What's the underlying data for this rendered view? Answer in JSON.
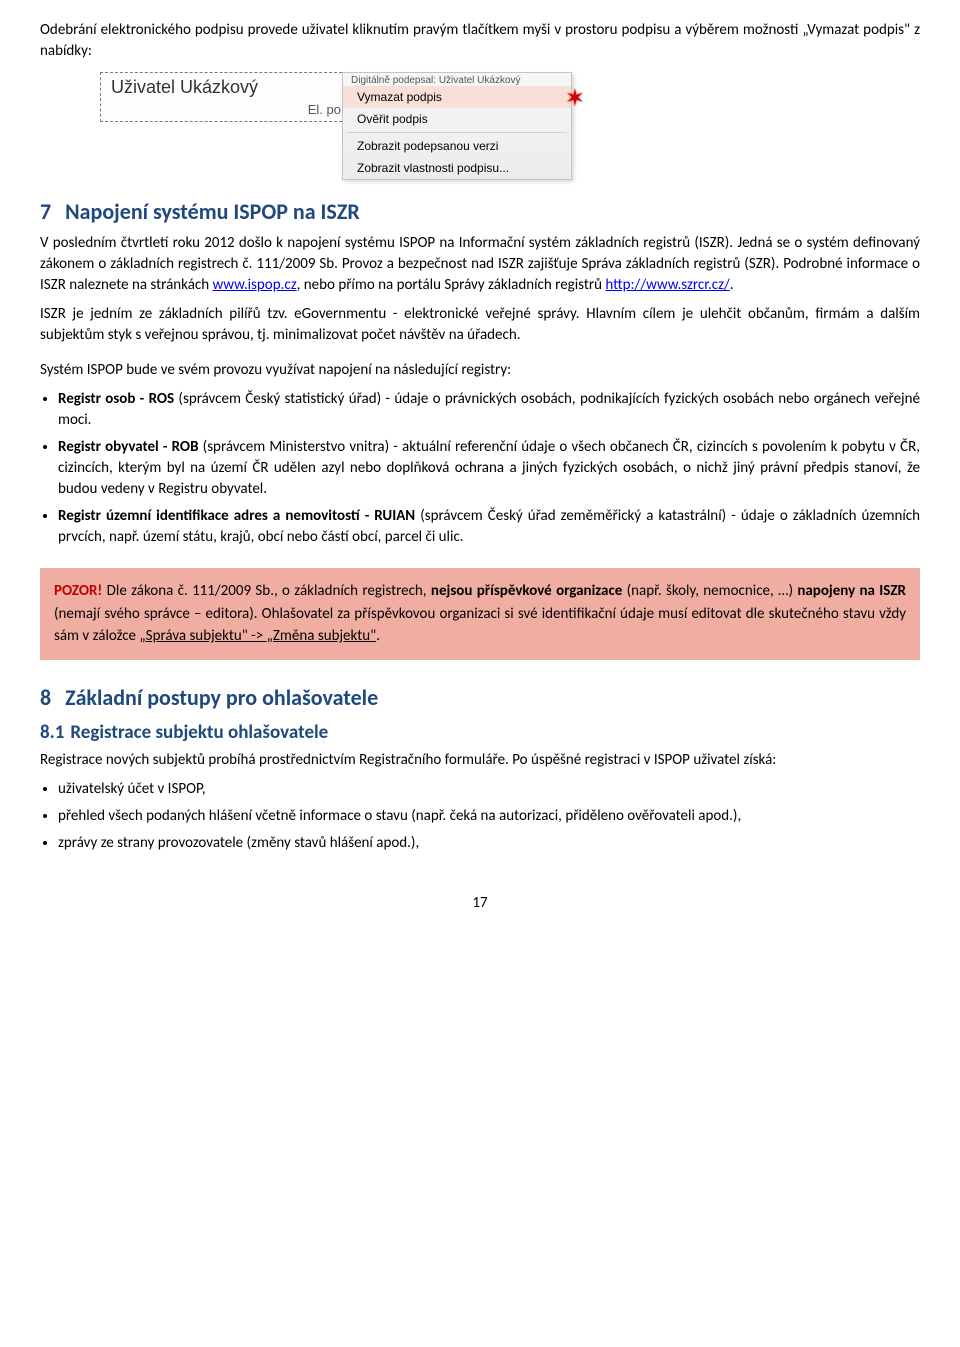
{
  "intro_text": "Odebrání elektronického podpisu provede uživatel kliknutím pravým tlačítkem myši v prostoru podpisu a výběrem možnosti „Vymazat podpis\" z nabídky:",
  "context_menu": {
    "signature_header": "Digitálně podepsal: Uživatel Ukázkový",
    "sig_name": "Uživatel Ukázkový",
    "sig_sub": "El. po",
    "items": [
      "Vymazat podpis",
      "Ověřit podpis",
      "Zobrazit podepsanou verzi",
      "Zobrazit vlastnosti podpisu..."
    ]
  },
  "section7": {
    "num": "7",
    "title": "Napojení systému ISPOP na ISZR",
    "p1a": "V posledním čtvrtletí roku 2012 došlo k napojení systému ISPOP na Informační systém základních registrů (ISZR). Jedná se o systém definovaný zákonem o základních registrech č. 111/2009 Sb. Provoz a bezpečnost nad ISZR zajišťuje Správa základních registrů (SZR). Podrobné informace o ISZR naleznete na stránkách ",
    "link1_text": "www.ispop.cz",
    "p1b": ", nebo přímo na portálu Správy základních registrů ",
    "link2_text": "http://www.szrcr.cz/",
    "p1c": ".",
    "p2": "ISZR je jedním ze základních pilířů tzv. eGovernmentu - elektronické veřejné správy. Hlavním cílem je ulehčit občanům, firmám a dalším subjektům styk s veřejnou správou, tj. minimalizovat počet návštěv na úřadech.",
    "p3": "Systém ISPOP bude ve svém provozu využívat napojení na následující registry:",
    "bullets": [
      "<b>Registr osob - ROS</b> (správcem Český statistický úřad) - údaje o právnických osobách, podnikajících fyzických osobách nebo orgánech veřejné moci.",
      "<b>Registr obyvatel - ROB</b> (správcem Ministerstvo vnitra) - aktuální referenční údaje o všech občanech ČR, cizincích s povolením k pobytu v ČR, cizincích, kterým byl na území ČR udělen azyl nebo doplňková ochrana a jiných fyzických osobách, o nichž jiný právní předpis stanoví, že budou vedeny v Registru obyvatel.",
      "<b>Registr územní identifikace adres a nemovitostí - RUIAN</b> (správcem Český úřad zeměměřický a katastrální) - údaje o základních územních prvcích, např. území státu, krajů, obcí nebo částí obcí, parcel či ulic."
    ]
  },
  "warning": {
    "red_lead": "POZOR!",
    "text_a": " Dle zákona č. 111/2009 Sb., o základních registrech, ",
    "bold_b": "nejsou příspěvkové organizace",
    "text_c": " (např. školy, nemocnice, …) ",
    "bold_d": "napojeny na ISZR",
    "text_e": " (nemají svého správce – editora). Ohlašovatel za příspěvkovou organizaci si své identifikační údaje musí editovat dle skutečného stavu vždy sám v záložce ",
    "underline_f": "„Správa subjektu\" -> „Změna subjektu\"",
    "text_g": "."
  },
  "section8": {
    "num": "8",
    "title": "Základní postupy pro ohlašovatele",
    "sub_num": "8.1",
    "sub_title": "Registrace subjektu ohlašovatele",
    "p1": "Registrace nových subjektů probíhá prostřednictvím Registračního formuláře. Po úspěšné registraci v ISPOP uživatel získá:",
    "bullets": [
      "uživatelský účet v ISPOP,",
      "přehled všech podaných hlášení včetně informace o stavu (např. čeká na autorizaci, přiděleno ověřovateli apod.),",
      "zprávy ze strany provozovatele (změny stavů hlášení apod.),"
    ]
  },
  "page_number": "17"
}
